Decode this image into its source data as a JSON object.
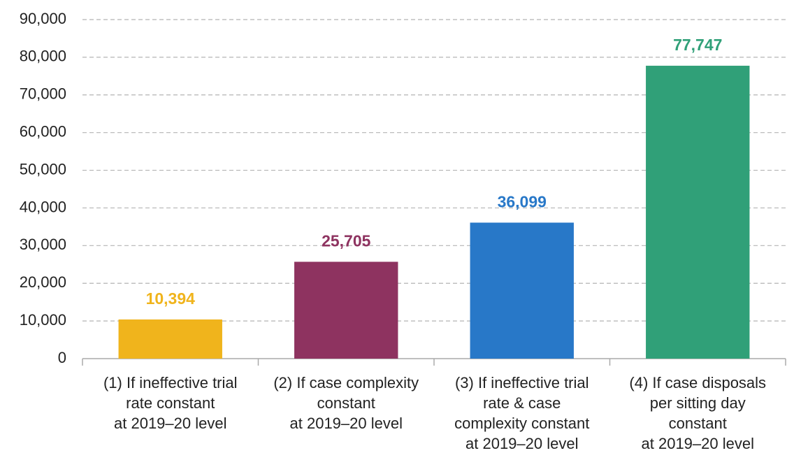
{
  "chart_data": {
    "type": "bar",
    "categories": [
      [
        "(1) If ineffective trial",
        "rate constant",
        "at 2019–20 level"
      ],
      [
        "(2) If case complexity",
        "constant",
        "at 2019–20 level"
      ],
      [
        "(3) If ineffective trial",
        "rate & case",
        "complexity constant",
        "at 2019–20 level"
      ],
      [
        "(4) If case disposals",
        "per sitting day",
        "constant",
        "at 2019–20 level"
      ]
    ],
    "values": [
      10394,
      25705,
      36099,
      77747
    ],
    "value_labels": [
      "10,394",
      "25,705",
      "36,099",
      "77,747"
    ],
    "colors": [
      "#f0b41c",
      "#8e3360",
      "#2878c8",
      "#30a078"
    ],
    "ylim": [
      0,
      90000
    ],
    "yticks": [
      0,
      {
        "value": 10000,
        "label": "10,000"
      },
      {
        "value": 20000,
        "label": "20,000"
      },
      {
        "value": 30000,
        "label": "30,000"
      },
      {
        "value": 40000,
        "label": "40,000"
      },
      {
        "value": 50000,
        "label": "50,000"
      },
      {
        "value": 60000,
        "label": "60,000"
      },
      {
        "value": 70000,
        "label": "70,000"
      },
      {
        "value": 80000,
        "label": "80,000"
      },
      {
        "value": 90000,
        "label": "90,000"
      }
    ],
    "grid": true
  }
}
